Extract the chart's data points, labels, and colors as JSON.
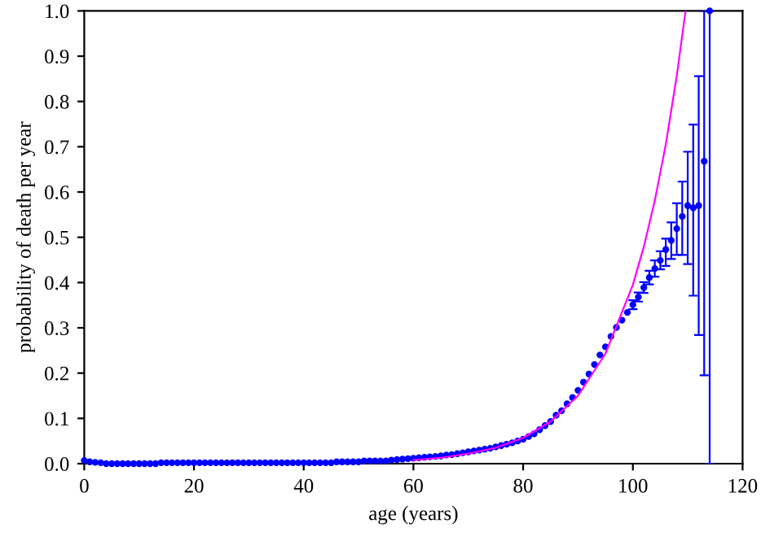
{
  "chart_data": {
    "type": "scatter",
    "xlabel": "age (years)",
    "ylabel": "probability of death per year",
    "xlim": [
      0,
      120
    ],
    "ylim": [
      0,
      1.0
    ],
    "xticks": [
      0,
      20,
      40,
      60,
      80,
      100,
      120
    ],
    "yticks": [
      {
        "value": 0,
        "label": "0.0"
      },
      0.1,
      0.2,
      0.3,
      0.4,
      0.5,
      0.6,
      0.7,
      0.8,
      0.9,
      {
        "value": 1,
        "label": "1.0"
      }
    ],
    "grid": false,
    "legend": false,
    "series": [
      {
        "type": "line",
        "color": "#ff00ff",
        "line_style": "solid",
        "marker": "none",
        "x": [
          60,
          65,
          70,
          75,
          80,
          85,
          90,
          95,
          100,
          102,
          104,
          106,
          108,
          109.6
        ],
        "values": [
          0.008,
          0.013,
          0.022,
          0.035,
          0.057,
          0.093,
          0.15,
          0.243,
          0.395,
          0.479,
          0.581,
          0.705,
          0.856,
          1.0
        ]
      },
      {
        "color": "#0000ff",
        "marker": "circle",
        "x": [
          0,
          1,
          2,
          3,
          4,
          5,
          6,
          7,
          8,
          9,
          10,
          11,
          12,
          13,
          14,
          15,
          16,
          17,
          18,
          19,
          20,
          21,
          22,
          23,
          24,
          25,
          26,
          27,
          28,
          29,
          30,
          31,
          32,
          33,
          34,
          35,
          36,
          37,
          38,
          39,
          40,
          41,
          42,
          43,
          44,
          45,
          46,
          47,
          48,
          49,
          50,
          51,
          52,
          53,
          54,
          55,
          56,
          57,
          58,
          59,
          60,
          61,
          62,
          63,
          64,
          65,
          66,
          67,
          68,
          69,
          70,
          71,
          72,
          73,
          74,
          75,
          76,
          77,
          78,
          79,
          80,
          81,
          82,
          83,
          84,
          85,
          86,
          87,
          88,
          89,
          90,
          91,
          92,
          93,
          94,
          95,
          96,
          97,
          98,
          99,
          100,
          101,
          102,
          103,
          104,
          105,
          106,
          107,
          108,
          109,
          110,
          111,
          112,
          113,
          114
        ],
        "values": [
          0.007,
          0.004,
          0.003,
          0.002,
          0.0,
          0.0,
          0.0,
          0.0,
          0.0,
          0.0,
          0.0,
          0.0,
          0.0,
          0.0,
          0.002,
          0.002,
          0.002,
          0.002,
          0.002,
          0.002,
          0.002,
          0.002,
          0.002,
          0.002,
          0.002,
          0.002,
          0.002,
          0.002,
          0.002,
          0.002,
          0.002,
          0.002,
          0.002,
          0.002,
          0.002,
          0.002,
          0.002,
          0.002,
          0.002,
          0.002,
          0.002,
          0.002,
          0.002,
          0.002,
          0.002,
          0.002,
          0.004,
          0.004,
          0.004,
          0.004,
          0.004,
          0.006,
          0.006,
          0.006,
          0.006,
          0.006,
          0.008,
          0.009,
          0.01,
          0.011,
          0.012,
          0.013,
          0.014,
          0.015,
          0.016,
          0.017,
          0.019,
          0.02,
          0.022,
          0.024,
          0.026,
          0.028,
          0.03,
          0.032,
          0.034,
          0.037,
          0.04,
          0.043,
          0.046,
          0.05,
          0.054,
          0.06,
          0.066,
          0.075,
          0.084,
          0.093,
          0.107,
          0.117,
          0.132,
          0.146,
          0.162,
          0.18,
          0.198,
          0.219,
          0.24,
          0.258,
          0.281,
          0.301,
          0.317,
          0.334,
          0.351,
          0.368,
          0.389,
          0.411,
          0.431,
          0.449,
          0.473,
          0.493,
          0.519,
          0.546,
          0.57,
          0.565,
          0.57,
          0.668,
          1.0
        ],
        "errors": [
          null,
          null,
          null,
          null,
          null,
          null,
          null,
          null,
          null,
          null,
          null,
          null,
          null,
          null,
          null,
          null,
          null,
          null,
          null,
          null,
          null,
          null,
          null,
          null,
          null,
          null,
          null,
          null,
          null,
          null,
          null,
          null,
          null,
          null,
          null,
          null,
          null,
          null,
          null,
          null,
          null,
          null,
          null,
          null,
          null,
          null,
          null,
          null,
          null,
          null,
          null,
          null,
          null,
          null,
          null,
          null,
          null,
          null,
          null,
          null,
          null,
          null,
          null,
          null,
          null,
          null,
          null,
          null,
          null,
          null,
          null,
          null,
          null,
          null,
          null,
          null,
          null,
          null,
          null,
          null,
          null,
          null,
          null,
          null,
          null,
          null,
          null,
          null,
          null,
          null,
          null,
          null,
          null,
          null,
          null,
          null,
          null,
          null,
          null,
          null,
          0.01,
          0.01,
          0.012,
          0.015,
          0.018,
          0.02,
          [
            0.437,
            0.497
          ],
          [
            0.452,
            0.533
          ],
          [
            0.461,
            0.575
          ],
          [
            0.461,
            0.623
          ],
          [
            0.441,
            0.689
          ],
          [
            0.371,
            0.749
          ],
          [
            0.284,
            0.856
          ],
          [
            0.195,
            1.0
          ],
          [
            0.0,
            1.0
          ]
        ]
      }
    ]
  }
}
